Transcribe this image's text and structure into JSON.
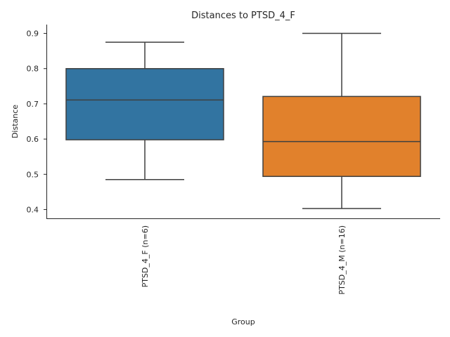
{
  "chart_data": {
    "type": "boxplot",
    "title": "Distances to PTSD_4_F",
    "xlabel": "Group",
    "ylabel": "Distance",
    "ylim": [
      0.375,
      0.925
    ],
    "yticks": [
      0.4,
      0.5,
      0.6,
      0.7,
      0.8,
      0.9
    ],
    "ytick_labels": [
      "0.4",
      "0.5",
      "0.6",
      "0.7",
      "0.8",
      "0.9"
    ],
    "grid": false,
    "categories": [
      "PTSD_4_F (n=6)",
      "PTSD_4_M (n=16)"
    ],
    "boxes": [
      {
        "label": "PTSD_4_F (n=6)",
        "whisker_low": 0.485,
        "q1": 0.598,
        "median": 0.711,
        "q3": 0.8,
        "whisker_high": 0.875,
        "color": "#3274a1"
      },
      {
        "label": "PTSD_4_M (n=16)",
        "whisker_low": 0.403,
        "q1": 0.494,
        "median": 0.593,
        "q3": 0.721,
        "whisker_high": 0.9,
        "color": "#e1812c"
      }
    ],
    "line_color": "#3f3f3f"
  }
}
